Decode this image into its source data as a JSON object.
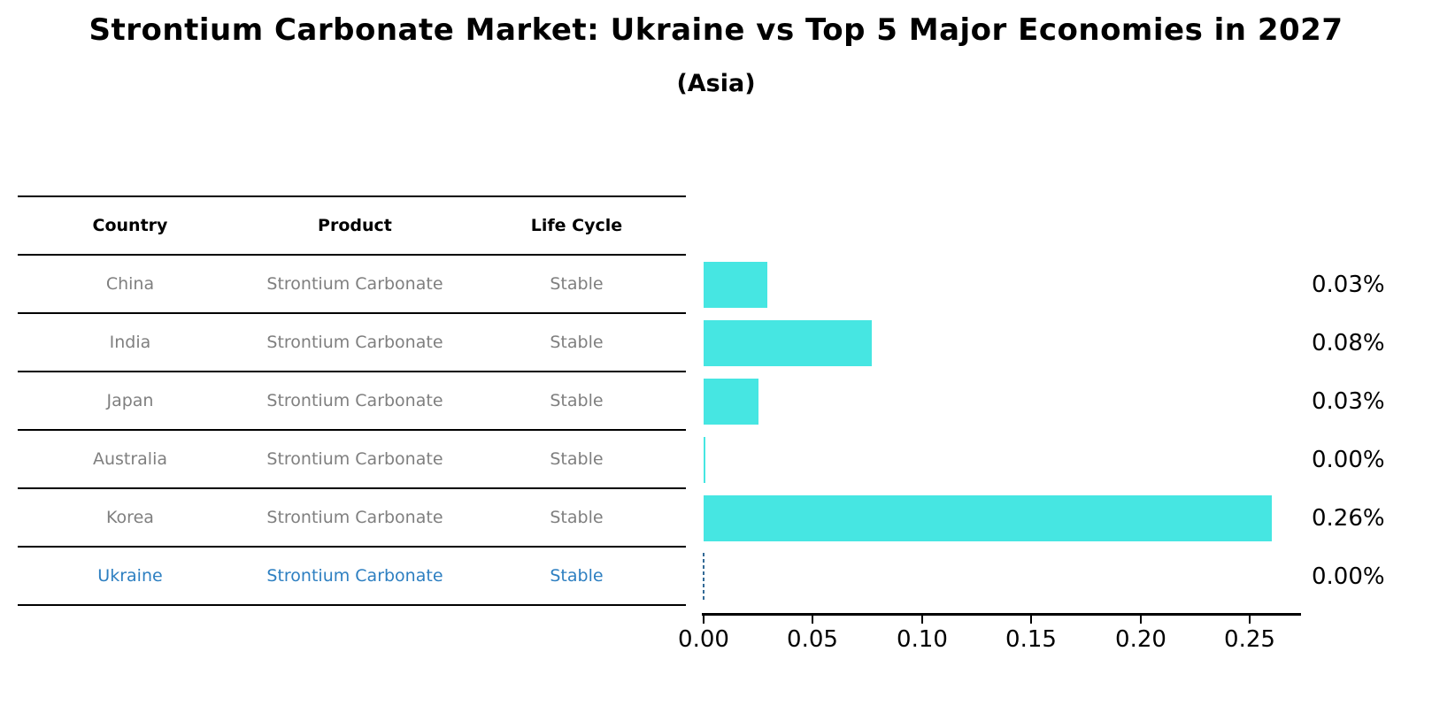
{
  "title": "Strontium Carbonate Market: Ukraine vs Top 5 Major Economies in 2027",
  "subtitle": "(Asia)",
  "table": {
    "headers": [
      "Country",
      "Product",
      "Life Cycle"
    ],
    "rows": [
      {
        "country": "China",
        "product": "Strontium Carbonate",
        "life_cycle": "Stable",
        "highlight": false
      },
      {
        "country": "India",
        "product": "Strontium Carbonate",
        "life_cycle": "Stable",
        "highlight": false
      },
      {
        "country": "Japan",
        "product": "Strontium Carbonate",
        "life_cycle": "Stable",
        "highlight": false
      },
      {
        "country": "Australia",
        "product": "Strontium Carbonate",
        "life_cycle": "Stable",
        "highlight": false
      },
      {
        "country": "Korea",
        "product": "Strontium Carbonate",
        "life_cycle": "Stable",
        "highlight": false
      },
      {
        "country": "Ukraine",
        "product": "Strontium Carbonate",
        "life_cycle": "Stable",
        "highlight": true
      }
    ]
  },
  "chart_data": {
    "type": "bar",
    "orientation": "horizontal",
    "title": "Strontium Carbonate Market: Ukraine vs Top 5 Major Economies in 2027 (Asia)",
    "categories": [
      "China",
      "India",
      "Japan",
      "Australia",
      "Korea",
      "Ukraine"
    ],
    "values": [
      0.029,
      0.077,
      0.025,
      0.0005,
      0.26,
      0
    ],
    "value_labels": [
      "0.03%",
      "0.08%",
      "0.03%",
      "0.00%",
      "0.26%",
      "0.00%"
    ],
    "xticks": [
      "0.00",
      "0.05",
      "0.10",
      "0.15",
      "0.20",
      "0.25"
    ],
    "xlim": [
      0,
      0.2733
    ],
    "grid": false,
    "legend": "none",
    "bar_color": "#46E6E2",
    "highlight": {
      "index": 5,
      "style": "dashed-line-at-zero",
      "line_color": "#336a96",
      "text_color": "#2d7fc1"
    }
  }
}
